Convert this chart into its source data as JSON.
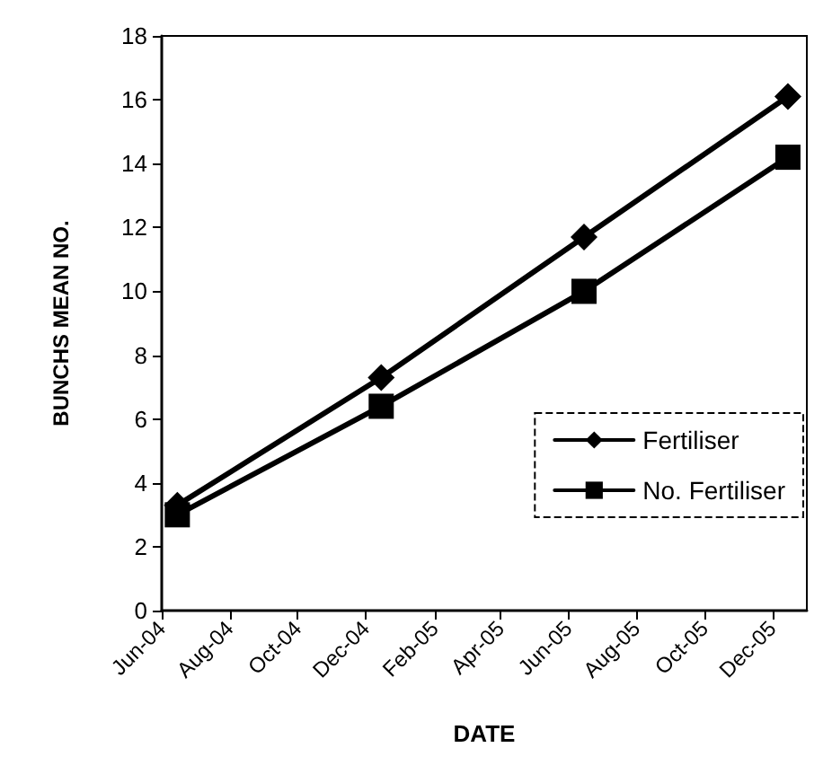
{
  "chart_data": {
    "type": "line",
    "xlabel": "DATE",
    "ylabel": "BUNCHS MEAN NO.",
    "x": [
      "2004-06-15",
      "2004-12-15",
      "2005-06-15",
      "2005-12-15"
    ],
    "series": [
      {
        "name": "Fertiliser",
        "color": "#000000",
        "marker": "diamond",
        "values": [
          3.3,
          7.3,
          11.7,
          16.1
        ]
      },
      {
        "name": "No. Fertiliser",
        "color": "#000000",
        "marker": "square",
        "values": [
          3.0,
          6.4,
          10.0,
          14.2
        ]
      }
    ],
    "xlim": [
      "2004-06-01",
      "2006-01-01"
    ],
    "xticks": [
      {
        "value": "2004-06-01",
        "label": "Jun-04"
      },
      {
        "value": "2004-08-01",
        "label": "Aug-04"
      },
      {
        "value": "2004-10-01",
        "label": "Oct-04"
      },
      {
        "value": "2004-12-01",
        "label": "Dec-04"
      },
      {
        "value": "2005-02-01",
        "label": "Feb-05"
      },
      {
        "value": "2005-04-01",
        "label": "Apr-05"
      },
      {
        "value": "2005-06-01",
        "label": "Jun-05"
      },
      {
        "value": "2005-08-01",
        "label": "Aug-05"
      },
      {
        "value": "2005-10-01",
        "label": "Oct-05"
      },
      {
        "value": "2005-12-01",
        "label": "Dec-05"
      }
    ],
    "ylim": [
      0,
      18
    ],
    "yticks": [
      0,
      2,
      4,
      6,
      8,
      10,
      12,
      14,
      16,
      18
    ],
    "grid": false,
    "legend": "right",
    "line_style": "solid"
  }
}
